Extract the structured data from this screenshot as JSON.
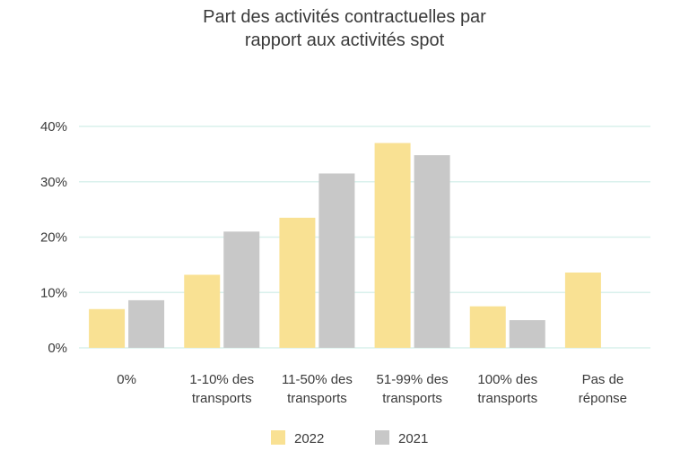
{
  "chart_data": {
    "type": "bar",
    "title_lines": [
      "Part des activités contractuelles par",
      "rapport aux activités spot"
    ],
    "categories": [
      [
        "0%"
      ],
      [
        "1-10% des",
        "transports"
      ],
      [
        "11-50% des",
        "transports"
      ],
      [
        "51-99% des",
        "transports"
      ],
      [
        "100% des",
        "transports"
      ],
      [
        "Pas de",
        "réponse"
      ]
    ],
    "series": [
      {
        "name": "2022",
        "color": "#f9e193",
        "values": [
          7,
          13.2,
          23.5,
          37,
          7.5,
          13.6
        ]
      },
      {
        "name": "2021",
        "color": "#c8c8c8",
        "values": [
          8.6,
          21,
          31.5,
          34.8,
          5,
          null
        ]
      }
    ],
    "yticks": [
      0,
      10,
      20,
      30,
      40
    ],
    "ytick_labels": [
      "0%",
      "10%",
      "20%",
      "30%",
      "40%"
    ],
    "ylim": [
      0,
      40
    ],
    "grid": true,
    "grid_color": "#d9f0ec",
    "legend_position": "bottom"
  }
}
